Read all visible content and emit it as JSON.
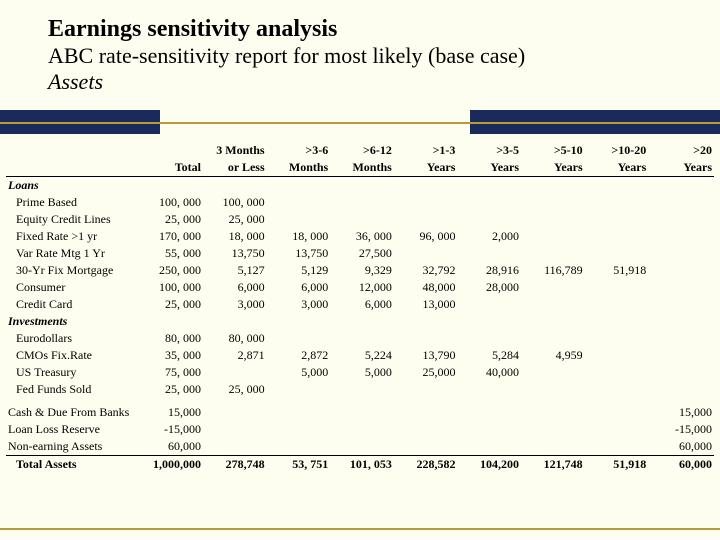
{
  "title": {
    "line1": "Earnings sensitivity analysis",
    "line2": "ABC rate-sensitivity report for most likely (base case)",
    "line3": "Assets"
  },
  "colors": {
    "page_bg": "#fefef0",
    "navy": "#1a2a5a",
    "gold": "#b89a3a",
    "text": "#000000"
  },
  "table": {
    "type": "table",
    "header_row1": [
      "",
      "",
      "3 Months",
      ">3-6",
      ">6-12",
      ">1-3",
      ">3-5",
      ">5-10",
      ">10-20",
      ">20"
    ],
    "header_row2": [
      "",
      "Total",
      "or Less",
      "Months",
      "Months",
      "Years",
      "Years",
      "Years",
      "Years",
      "Years"
    ],
    "sections": [
      {
        "heading": "Loans",
        "rows": [
          {
            "label": "Prime Based",
            "cells": [
              "100, 000",
              "100, 000",
              "",
              "",
              "",
              "",
              "",
              "",
              ""
            ]
          },
          {
            "label": "Equity Credit Lines",
            "cells": [
              "25, 000",
              "25, 000",
              "",
              "",
              "",
              "",
              "",
              "",
              ""
            ]
          },
          {
            "label": "Fixed Rate >1 yr",
            "cells": [
              "170, 000",
              "18, 000",
              "18, 000",
              "36, 000",
              "96, 000",
              "2,000",
              "",
              "",
              ""
            ]
          },
          {
            "label": "Var Rate Mtg 1 Yr",
            "cells": [
              "55, 000",
              "13,750",
              "13,750",
              "27,500",
              "",
              "",
              "",
              "",
              ""
            ]
          },
          {
            "label": "30-Yr Fix Mortgage",
            "cells": [
              "250, 000",
              "5,127",
              "5,129",
              "9,329",
              "32,792",
              "28,916",
              "116,789",
              "51,918",
              ""
            ]
          },
          {
            "label": "Consumer",
            "cells": [
              "100, 000",
              "6,000",
              "6,000",
              "12,000",
              "48,000",
              "28,000",
              "",
              "",
              ""
            ]
          },
          {
            "label": "Credit Card",
            "cells": [
              "25, 000",
              "3,000",
              "3,000",
              "6,000",
              "13,000",
              "",
              "",
              "",
              ""
            ]
          }
        ]
      },
      {
        "heading": "Investments",
        "rows": [
          {
            "label": "Eurodollars",
            "cells": [
              "80, 000",
              "80, 000",
              "",
              "",
              "",
              "",
              "",
              "",
              ""
            ]
          },
          {
            "label": "CMOs Fix.Rate",
            "cells": [
              "35, 000",
              "2,871",
              "2,872",
              "5,224",
              "13,790",
              "5,284",
              "4,959",
              "",
              ""
            ]
          },
          {
            "label": "US Treasury",
            "cells": [
              "75, 000",
              "",
              "5,000",
              "5,000",
              "25,000",
              "40,000",
              "",
              "",
              ""
            ]
          },
          {
            "label": "Fed Funds Sold",
            "cells": [
              "25, 000",
              "25, 000",
              "",
              "",
              "",
              "",
              "",
              "",
              ""
            ]
          }
        ]
      }
    ],
    "footer_rows": [
      {
        "label": "Cash & Due From Banks",
        "cells": [
          "15,000",
          "",
          "",
          "",
          "",
          "",
          "",
          "",
          "15,000"
        ]
      },
      {
        "label": "Loan Loss Reserve",
        "cells": [
          "-15,000",
          "",
          "",
          "",
          "",
          "",
          "",
          "",
          "-15,000"
        ]
      },
      {
        "label": "Non-earning Assets",
        "cells": [
          "60,000",
          "",
          "",
          "",
          "",
          "",
          "",
          "",
          "60,000"
        ]
      },
      {
        "label": "Total Assets",
        "bold": true,
        "cells": [
          "1,000,000",
          "278,748",
          "53, 751",
          "101, 053",
          "228,582",
          "104,200",
          "121,748",
          "51,918",
          "60,000"
        ]
      }
    ]
  }
}
